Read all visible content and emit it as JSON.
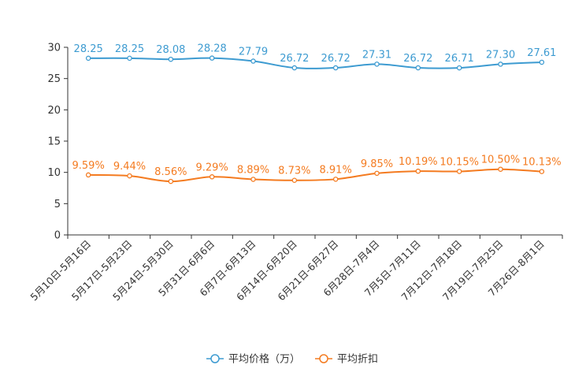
{
  "chart_data": {
    "type": "line",
    "title": "",
    "xlabel": "",
    "ylabel": "",
    "ylim": [
      0,
      30
    ],
    "yticks": [
      "0",
      "5",
      "10",
      "15",
      "20",
      "25",
      "30"
    ],
    "categories": [
      "5月10日-5月16日",
      "5月17日-5月23日",
      "5月24日-5月30日",
      "5月31日-6月6日",
      "6月7日-6月13日",
      "6月14日-6月20日",
      "6月21日-6月27日",
      "6月28日-7月4日",
      "7月5日-7月11日",
      "7月12日-7月18日",
      "7月19日-7月25日",
      "7月26日-8月1日"
    ],
    "legend_position": "bottom",
    "series": [
      {
        "name": "平均价格（万）",
        "color": "#3d9bd1",
        "values": [
          28.25,
          28.25,
          28.08,
          28.28,
          27.79,
          26.72,
          26.72,
          27.31,
          26.72,
          26.71,
          27.3,
          27.61
        ],
        "labels": [
          "28.25",
          "28.25",
          "28.08",
          "28.28",
          "27.79",
          "26.72",
          "26.72",
          "27.31",
          "26.72",
          "26.71",
          "27.30",
          "27.61"
        ]
      },
      {
        "name": "平均折扣",
        "color": "#f47b20",
        "values": [
          9.59,
          9.44,
          8.56,
          9.29,
          8.89,
          8.73,
          8.91,
          9.85,
          10.19,
          10.15,
          10.5,
          10.13
        ],
        "labels": [
          "9.59%",
          "9.44%",
          "8.56%",
          "9.29%",
          "8.89%",
          "8.73%",
          "8.91%",
          "9.85%",
          "10.19%",
          "10.15%",
          "10.50%",
          "10.13%"
        ]
      }
    ]
  }
}
